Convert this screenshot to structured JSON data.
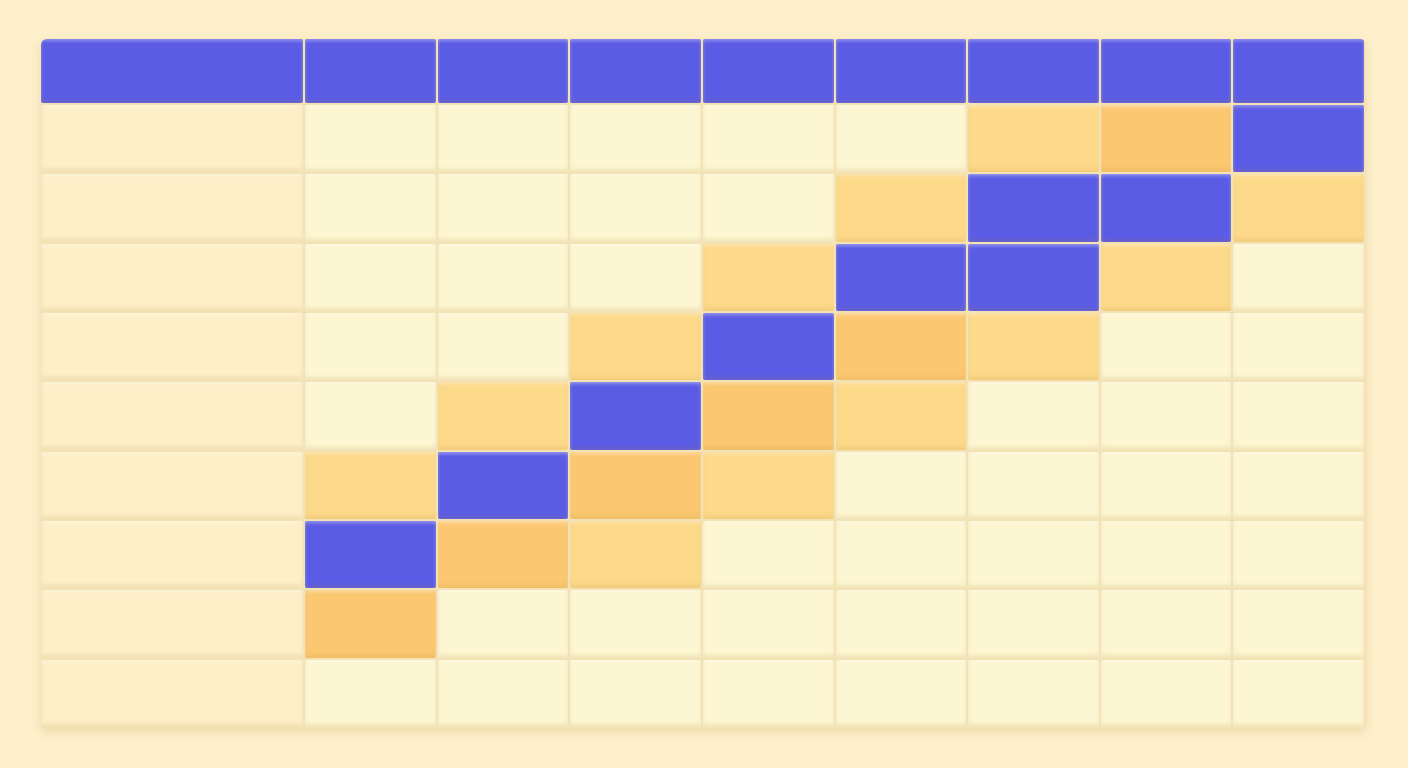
{
  "table": {
    "header": [
      "#5b5ce6",
      "#5b5ce6",
      "#5b5ce6",
      "#5b5ce6",
      "#5b5ce6",
      "#5b5ce6",
      "#5b5ce6",
      "#5b5ce6",
      "#5b5ce6"
    ],
    "rows": [
      [
        "#fdefc8",
        "#fdf6d2",
        "#fdf6d2",
        "#fdf6d2",
        "#fdf6d2",
        "#fdf6d2",
        "#fdd98a",
        "#fbc871",
        "#5b5ce6"
      ],
      [
        "#fdefc8",
        "#fdf6d2",
        "#fdf6d2",
        "#fdf6d2",
        "#fdf6d2",
        "#fdd98a",
        "#5b5ce6",
        "#5b5ce6",
        "#fdd98a"
      ],
      [
        "#fdefc8",
        "#fdf6d2",
        "#fdf6d2",
        "#fdf6d2",
        "#fdd98a",
        "#5b5ce6",
        "#5b5ce6",
        "#fdd98a",
        "#fdf6d2"
      ],
      [
        "#fdefc8",
        "#fdf6d2",
        "#fdf6d2",
        "#fdd98a",
        "#5b5ce6",
        "#fbc871",
        "#fdd98a",
        "#fdf6d2",
        "#fdf6d2"
      ],
      [
        "#fdefc8",
        "#fdf6d2",
        "#fdd98a",
        "#5b5ce6",
        "#fbc871",
        "#fdd98a",
        "#fdf6d2",
        "#fdf6d2",
        "#fdf6d2"
      ],
      [
        "#fdefc8",
        "#fdd98a",
        "#5b5ce6",
        "#fbc871",
        "#fdd98a",
        "#fdf6d2",
        "#fdf6d2",
        "#fdf6d2",
        "#fdf6d2"
      ],
      [
        "#fdefc8",
        "#5b5ce6",
        "#fbc871",
        "#fdd98a",
        "#fdf6d2",
        "#fdf6d2",
        "#fdf6d2",
        "#fdf6d2",
        "#fdf6d2"
      ],
      [
        "#fdefc8",
        "#fbc871",
        "#fdf6d2",
        "#fdf6d2",
        "#fdf6d2",
        "#fdf6d2",
        "#fdf6d2",
        "#fdf6d2",
        "#fdf6d2"
      ],
      [
        "#fdefc8",
        "#fdf6d2",
        "#fdf6d2",
        "#fdf6d2",
        "#fdf6d2",
        "#fdf6d2",
        "#fdf6d2",
        "#fdf6d2",
        "#fdf6d2"
      ]
    ]
  }
}
